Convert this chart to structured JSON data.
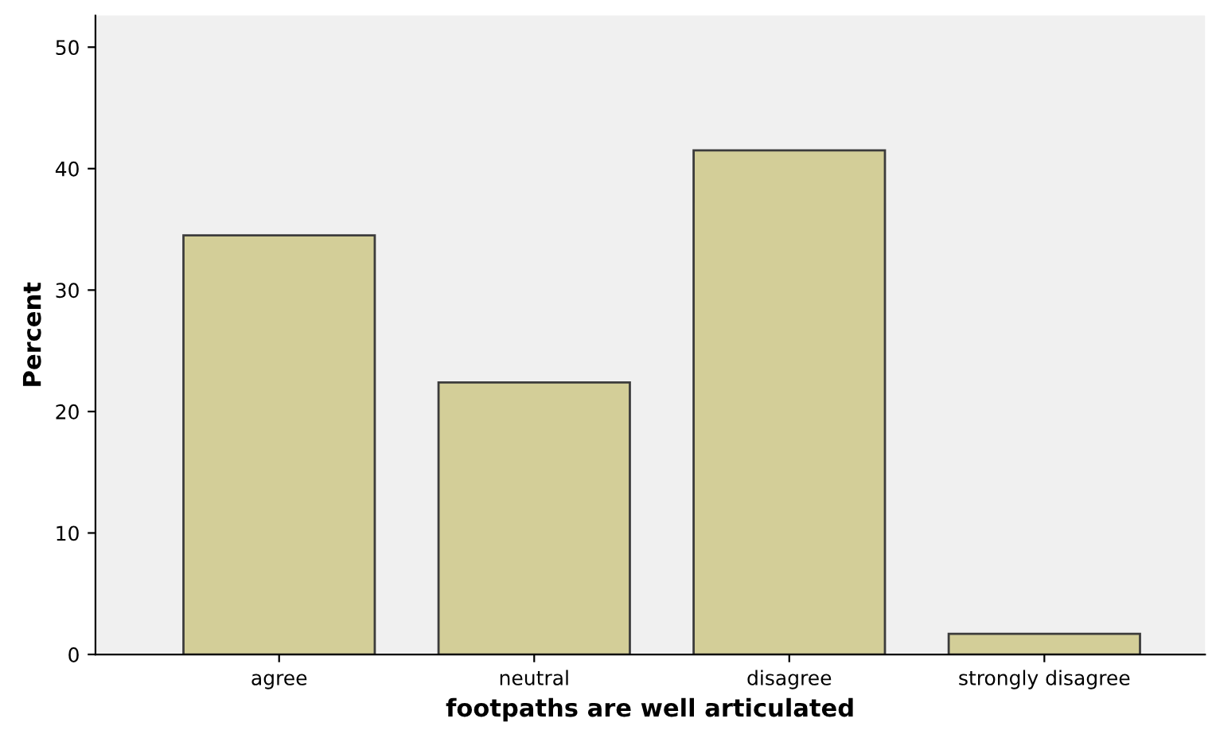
{
  "chart_data": {
    "type": "bar",
    "xlabel": "footpaths are well articulated",
    "ylabel": "Percent",
    "categories": [
      "agree",
      "neutral",
      "disagree",
      "strongly disagree"
    ],
    "values": [
      34.5,
      22.4,
      41.5,
      1.7
    ],
    "color": "#d3ce98",
    "ylim": [
      0,
      52.6
    ],
    "yticks": [
      0,
      10,
      20,
      30,
      40,
      50
    ],
    "grid": false
  }
}
